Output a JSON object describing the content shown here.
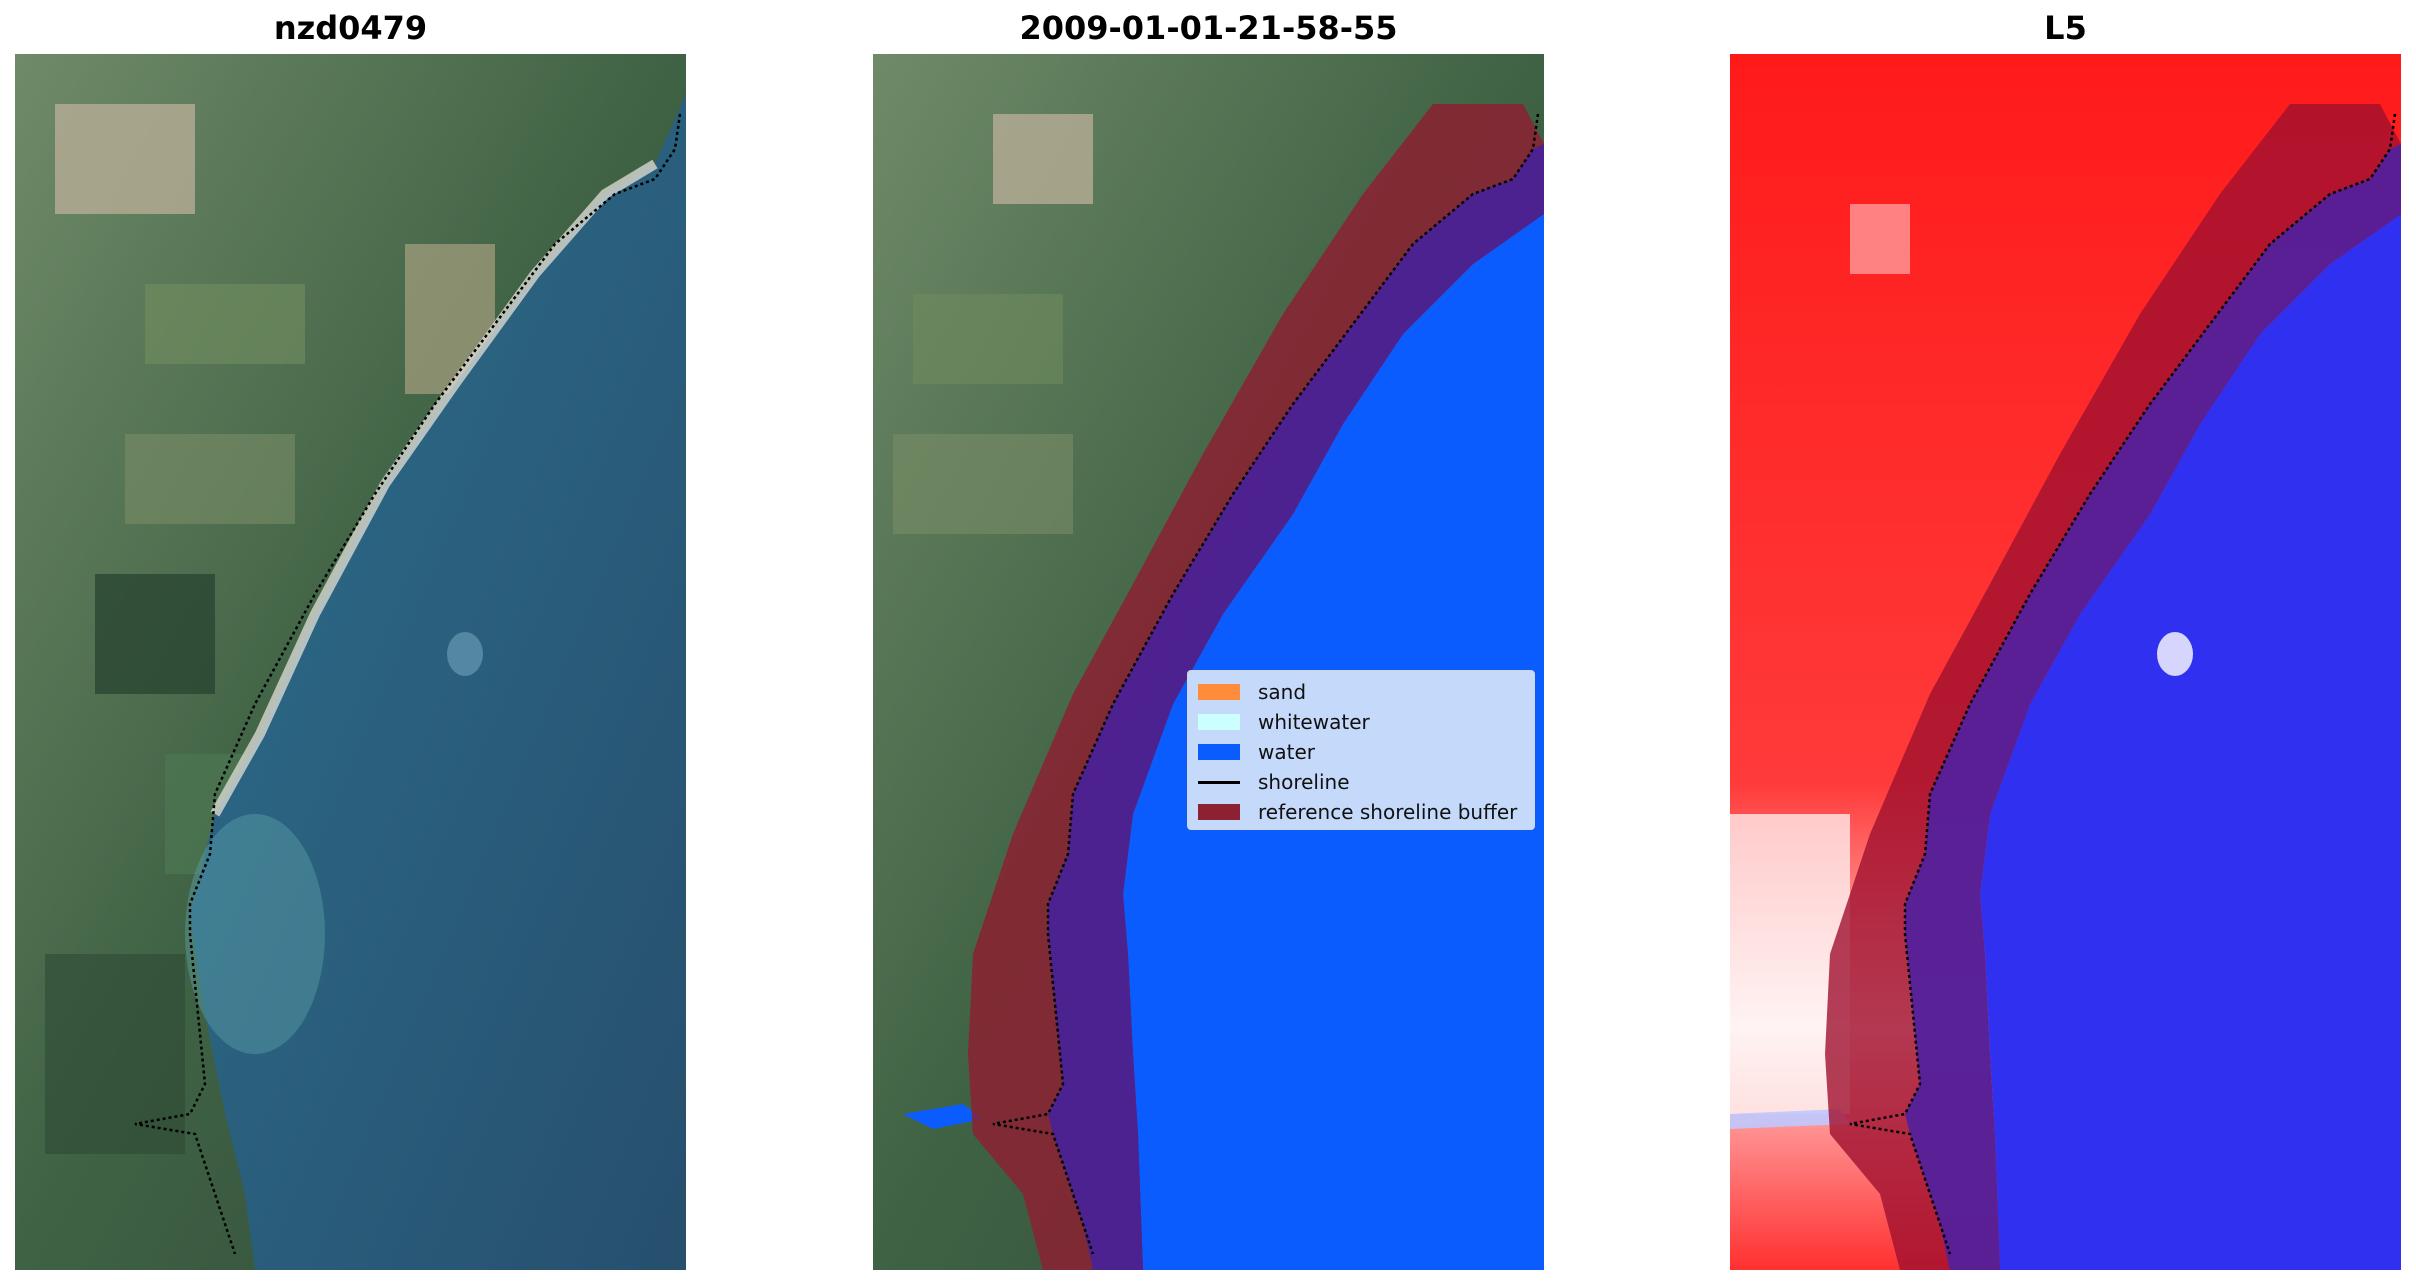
{
  "panels": [
    {
      "title": "nzd0479"
    },
    {
      "title": "2009-01-01-21-58-55"
    },
    {
      "title": "L5"
    }
  ],
  "legend": {
    "items": [
      {
        "label": "sand",
        "color": "#ff8c3a",
        "kind": "patch"
      },
      {
        "label": "whitewater",
        "color": "#ccffff",
        "kind": "patch"
      },
      {
        "label": "water",
        "color": "#0b5cff",
        "kind": "patch"
      },
      {
        "label": "shoreline",
        "color": "#000000",
        "kind": "line"
      },
      {
        "label": "reference shoreline buffer",
        "color": "#8b2131",
        "kind": "patch"
      }
    ]
  },
  "colors": {
    "land_green": "#4b6a4a",
    "sea_blue": "#2a5e7a",
    "water_class": "#0b5cff",
    "buffer": "#8b2131",
    "index_land": "#ff1a1a",
    "index_water": "#3030f0"
  }
}
